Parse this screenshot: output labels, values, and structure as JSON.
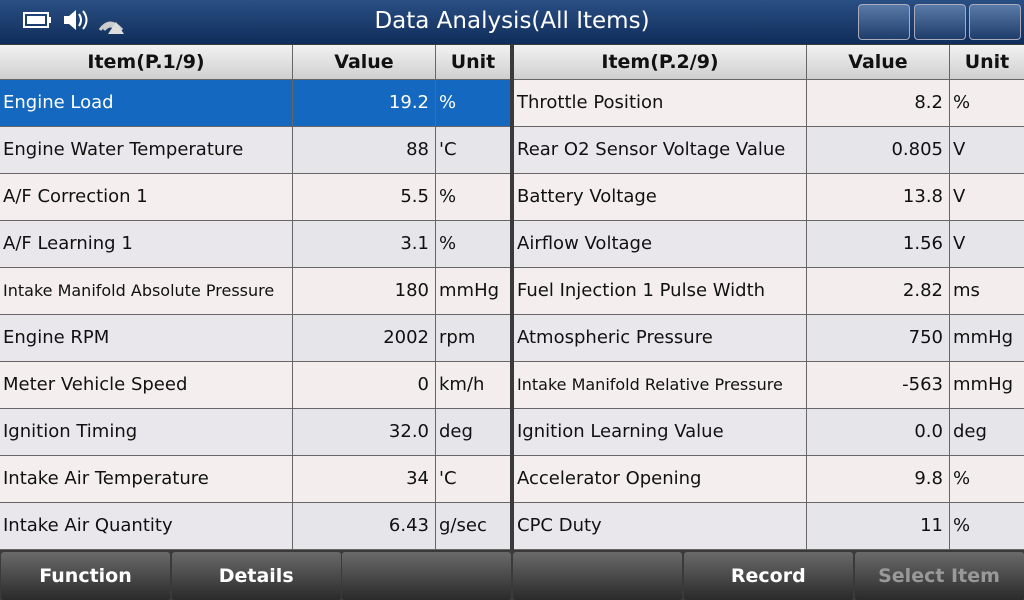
{
  "header": {
    "title": "Data Analysis(All Items)"
  },
  "tables": [
    {
      "columns": [
        "Item(P.1/9)",
        "Value",
        "Unit"
      ],
      "rows": [
        [
          "Engine Load",
          "19.2",
          "%"
        ],
        [
          "Engine Water Temperature",
          "88",
          "'C"
        ],
        [
          "A/F Correction 1",
          "5.5",
          "%"
        ],
        [
          "A/F Learning 1",
          "3.1",
          "%"
        ],
        [
          "Intake Manifold Absolute Pressure",
          "180",
          "mmHg"
        ],
        [
          "Engine RPM",
          "2002",
          "rpm"
        ],
        [
          "Meter Vehicle Speed",
          "0",
          "km/h"
        ],
        [
          "Ignition Timing",
          "32.0",
          "deg"
        ],
        [
          "Intake Air Temperature",
          "34",
          "'C"
        ],
        [
          "Intake Air Quantity",
          "6.43",
          "g/sec"
        ]
      ]
    },
    {
      "columns": [
        "Item(P.2/9)",
        "Value",
        "Unit"
      ],
      "rows": [
        [
          "Throttle Position",
          "8.2",
          "%"
        ],
        [
          "Rear O2 Sensor Voltage Value",
          "0.805",
          "V"
        ],
        [
          "Battery Voltage",
          "13.8",
          "V"
        ],
        [
          "Airflow Voltage",
          "1.56",
          "V"
        ],
        [
          "Fuel Injection 1 Pulse Width",
          "2.82",
          "ms"
        ],
        [
          "Atmospheric Pressure",
          "750",
          "mmHg"
        ],
        [
          "Intake Manifold Relative Pressure",
          "-563",
          "mmHg"
        ],
        [
          "Ignition Learning Value",
          "0.0",
          "deg"
        ],
        [
          "Accelerator Opening",
          "9.8",
          "%"
        ],
        [
          "CPC Duty",
          "11",
          "%"
        ]
      ]
    }
  ],
  "buttons": [
    "Function",
    "Details",
    "Record",
    "Select Item"
  ]
}
